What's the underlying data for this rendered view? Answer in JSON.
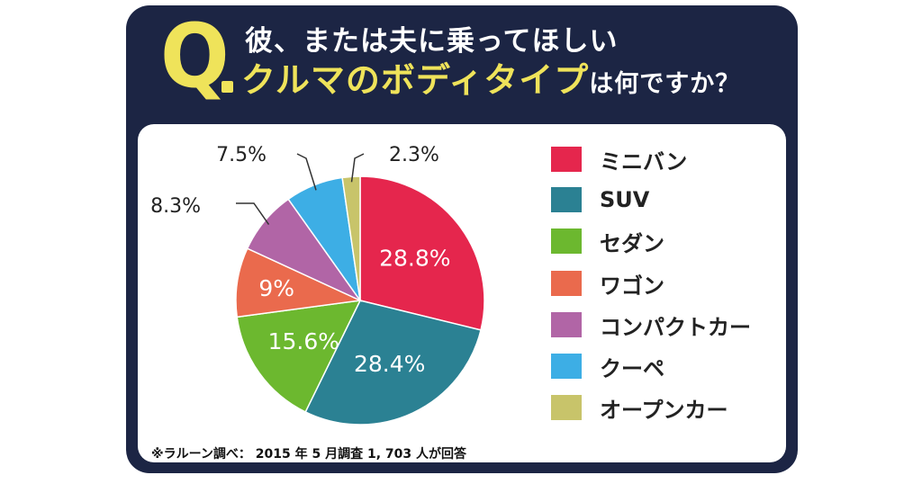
{
  "header": {
    "q_letter": "Q",
    "title_line1": "彼、または夫に乗ってほしい",
    "title_highlight": "クルマのボディタイプ",
    "title_rest": "は何ですか？"
  },
  "source_note": "※ラルーン調べ： 2015 年 5 月調査 1, 703 人が回答",
  "chart_data": {
    "type": "pie",
    "title": "彼、または夫に乗ってほしいクルマのボディタイプは何ですか？",
    "legend_position": "right",
    "slices": [
      {
        "label": "ミニバン",
        "value": 28.8,
        "display": "28.8%",
        "color": "#e5264d"
      },
      {
        "label": "SUV",
        "value": 28.4,
        "display": "28.4%",
        "color": "#2b8193"
      },
      {
        "label": "セダン",
        "value": 15.6,
        "display": "15.6%",
        "color": "#6cb82f"
      },
      {
        "label": "ワゴン",
        "value": 9,
        "display": "9%",
        "color": "#ea6a4d"
      },
      {
        "label": "コンパクトカー",
        "value": 8.3,
        "display": "8.3%",
        "color": "#b165a6"
      },
      {
        "label": "クーペ",
        "value": 7.5,
        "display": "7.5%",
        "color": "#3daee5"
      },
      {
        "label": "オープンカー",
        "value": 2.3,
        "display": "2.3%",
        "color": "#c8c46a"
      }
    ]
  }
}
